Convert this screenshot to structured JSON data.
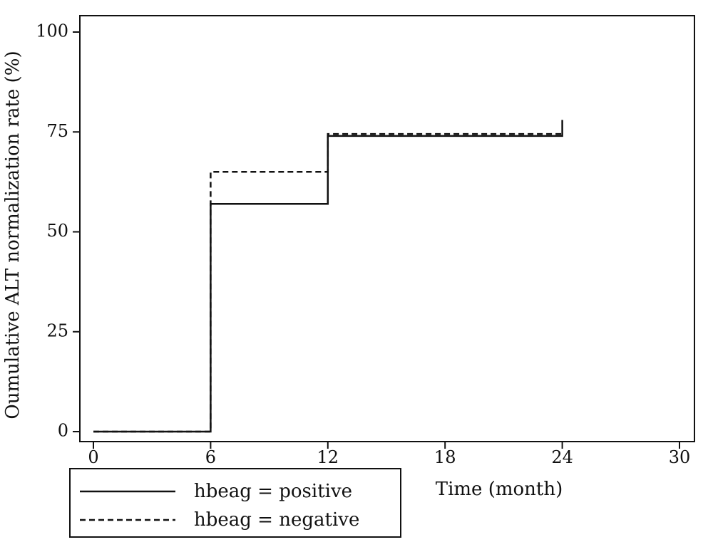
{
  "chart_data": {
    "type": "line",
    "step": true,
    "xlabel": "Time (month)",
    "ylabel": "Oumulative ALT normalization rate (%)",
    "xlim": [
      0,
      30
    ],
    "ylim": [
      0,
      100
    ],
    "x_ticks": [
      "0",
      "6",
      "12",
      "18",
      "24",
      "30"
    ],
    "y_ticks": [
      "0",
      "25",
      "50",
      "75",
      "100"
    ],
    "grid": false,
    "legend_position": "bottom-left",
    "series": [
      {
        "name": "hbeag = positive",
        "style": "solid",
        "color": "#111111",
        "x": [
          0,
          6,
          6,
          12,
          12,
          24,
          24
        ],
        "y": [
          0,
          0,
          57,
          57,
          74,
          74,
          78
        ]
      },
      {
        "name": "hbeag = negative",
        "style": "dashed",
        "color": "#111111",
        "x": [
          0,
          6,
          6,
          12,
          12,
          24
        ],
        "y": [
          0,
          0,
          65,
          65,
          74.5,
          74.5
        ]
      }
    ]
  }
}
